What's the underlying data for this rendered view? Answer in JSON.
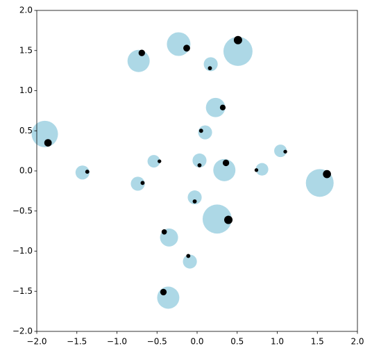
{
  "chart_data": {
    "type": "scatter",
    "series": [
      {
        "color": "#add8e6",
        "x": [
          -0.23,
          0.51,
          -0.73,
          0.17,
          0.23,
          -1.9,
          0.1,
          1.04,
          -0.54,
          0.03,
          0.34,
          0.81,
          -1.43,
          1.53,
          -0.74,
          -0.03,
          0.25,
          -0.35,
          -0.09,
          -0.36
        ],
        "values": [
          1.58,
          1.49,
          1.37,
          1.33,
          0.79,
          0.46,
          0.48,
          0.25,
          0.12,
          0.13,
          0.01,
          0.02,
          -0.02,
          -0.15,
          -0.16,
          -0.33,
          -0.6,
          -0.83,
          -1.13,
          -1.58
        ],
        "sizes": [
          600,
          910,
          530,
          210,
          400,
          750,
          210,
          170,
          170,
          210,
          530,
          170,
          210,
          830,
          210,
          210,
          910,
          350,
          210,
          530
        ]
      },
      {
        "color": "#000000",
        "x": [
          -0.13,
          0.51,
          -0.69,
          0.16,
          0.32,
          -1.86,
          0.05,
          1.1,
          -0.47,
          0.03,
          0.36,
          0.74,
          -1.37,
          1.62,
          -0.68,
          -0.03,
          0.39,
          -0.41,
          -0.11,
          -0.42
        ],
        "values": [
          1.53,
          1.63,
          1.47,
          1.28,
          0.79,
          0.35,
          0.5,
          0.24,
          0.12,
          0.07,
          0.1,
          0.01,
          -0.01,
          -0.04,
          -0.15,
          -0.38,
          -0.61,
          -0.76,
          -1.06,
          -1.51
        ],
        "sizes": [
          50,
          75,
          45,
          18,
          35,
          60,
          18,
          15,
          15,
          18,
          45,
          15,
          18,
          70,
          18,
          18,
          75,
          30,
          18,
          45
        ]
      }
    ],
    "xlim": [
      -2,
      2
    ],
    "ylim": [
      -2,
      2
    ],
    "xticks": [
      {
        "value": -2,
        "label": "−2.0"
      },
      {
        "value": -1.5,
        "label": "−1.5"
      },
      {
        "value": -1,
        "label": "−1.0"
      },
      {
        "value": -0.5,
        "label": "−0.5"
      },
      {
        "value": 0,
        "label": "0.0"
      },
      {
        "value": 0.5,
        "label": "0.5"
      },
      {
        "value": 1,
        "label": "1.0"
      },
      {
        "value": 1.5,
        "label": "1.5"
      },
      {
        "value": 2,
        "label": "2.0"
      }
    ],
    "yticks": [
      {
        "value": -2,
        "label": "−2.0"
      },
      {
        "value": -1.5,
        "label": "−1.5"
      },
      {
        "value": -1,
        "label": "−1.0"
      },
      {
        "value": -0.5,
        "label": "−0.5"
      },
      {
        "value": 0,
        "label": "0.0"
      },
      {
        "value": 0.5,
        "label": "0.5"
      },
      {
        "value": 1,
        "label": "1.0"
      },
      {
        "value": 1.5,
        "label": "1.5"
      },
      {
        "value": 2,
        "label": "2.0"
      }
    ],
    "grid": false
  }
}
